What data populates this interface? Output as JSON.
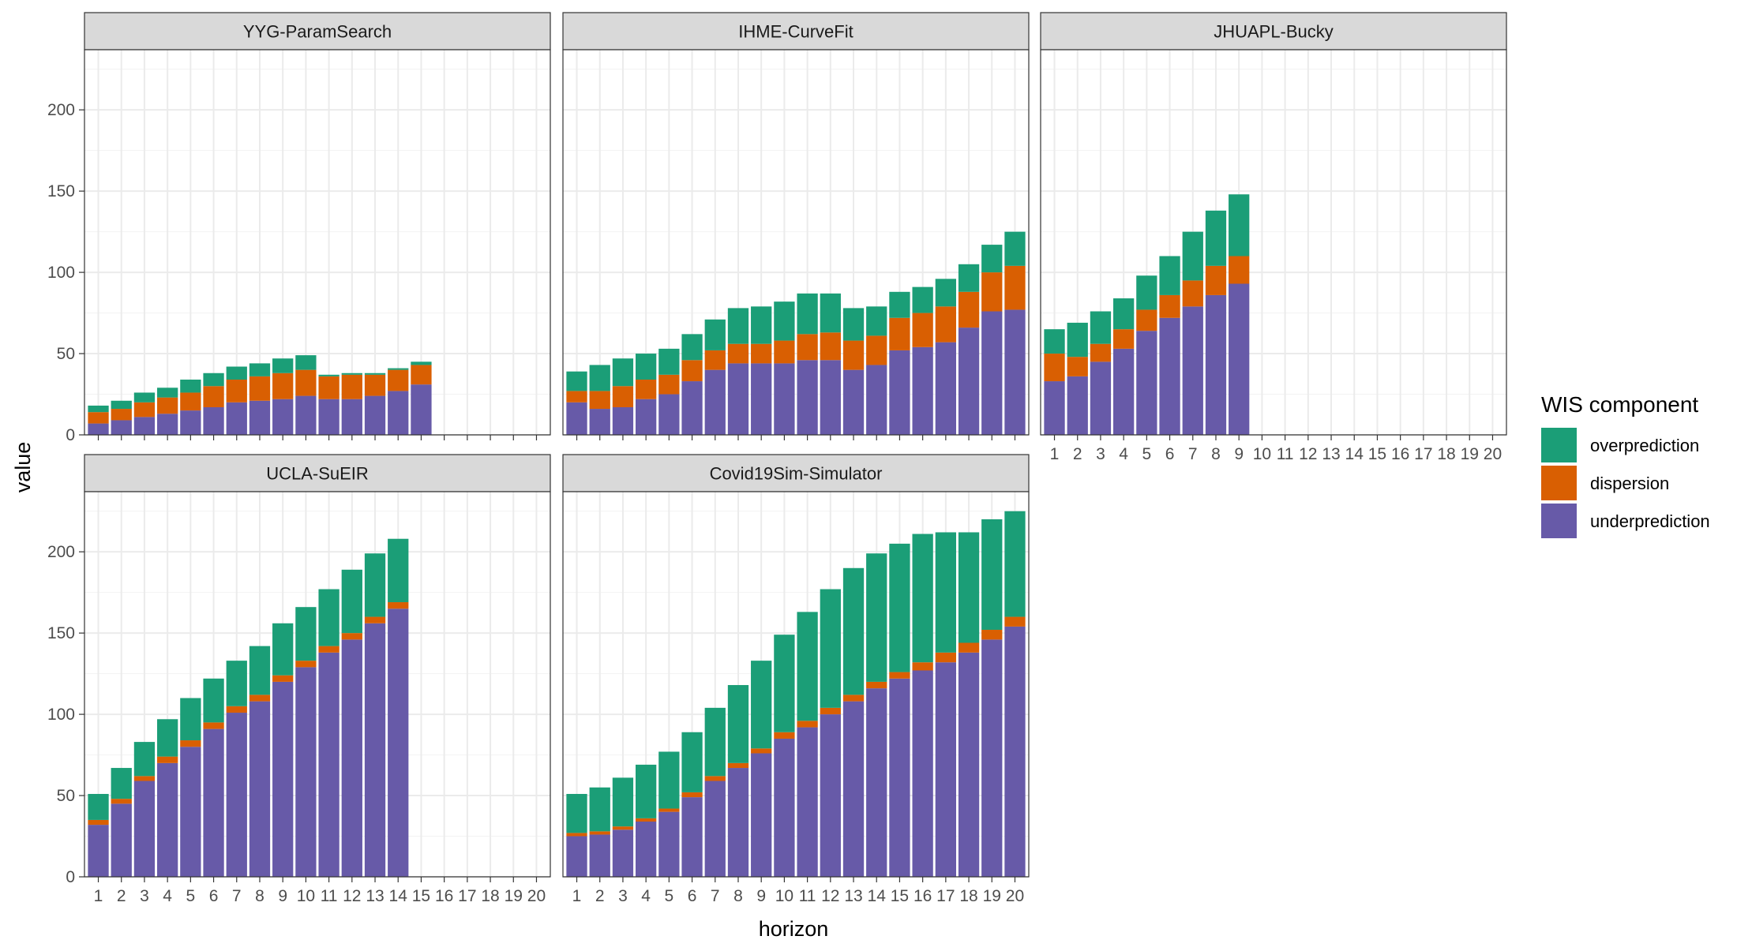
{
  "chart_data": {
    "type": "bar",
    "stacked": true,
    "faceted": true,
    "xlabel": "horizon",
    "ylabel": "value",
    "ylim": [
      0,
      237
    ],
    "yticks": [
      0,
      50,
      100,
      150,
      200
    ],
    "x": [
      1,
      2,
      3,
      4,
      5,
      6,
      7,
      8,
      9,
      10,
      11,
      12,
      13,
      14,
      15,
      16,
      17,
      18,
      19,
      20
    ],
    "grid": true,
    "legend": {
      "title": "WIS component",
      "position": "right",
      "items": [
        {
          "key": "overprediction",
          "label": "overprediction",
          "color": "#1b9e77"
        },
        {
          "key": "dispersion",
          "label": "dispersion",
          "color": "#d95f02"
        },
        {
          "key": "underprediction",
          "label": "underprediction",
          "color": "#675aa8"
        }
      ]
    },
    "stack_order": [
      "underprediction",
      "dispersion",
      "overprediction"
    ],
    "panels": [
      {
        "title": "YYG-ParamSearch",
        "underprediction": [
          7,
          9,
          11,
          13,
          15,
          17,
          20,
          21,
          22,
          24,
          22,
          22,
          24,
          27,
          31
        ],
        "dispersion": [
          7,
          7,
          9,
          10,
          11,
          13,
          14,
          15,
          16,
          16,
          14,
          15,
          13,
          13,
          12
        ],
        "overprediction": [
          4,
          5,
          6,
          6,
          8,
          8,
          8,
          8,
          9,
          9,
          1,
          1,
          1,
          1,
          2
        ]
      },
      {
        "title": "IHME-CurveFit",
        "underprediction": [
          20,
          16,
          17,
          22,
          25,
          33,
          40,
          44,
          44,
          44,
          46,
          46,
          40,
          43,
          52,
          54,
          57,
          66,
          76,
          77
        ],
        "dispersion": [
          7,
          11,
          13,
          12,
          12,
          13,
          12,
          12,
          12,
          14,
          16,
          17,
          18,
          18,
          20,
          21,
          22,
          22,
          24,
          27
        ],
        "overprediction": [
          12,
          16,
          17,
          16,
          16,
          16,
          19,
          22,
          23,
          24,
          25,
          24,
          20,
          18,
          16,
          16,
          17,
          17,
          17,
          21
        ]
      },
      {
        "title": "JHUAPL-Bucky",
        "underprediction": [
          33,
          36,
          45,
          53,
          64,
          72,
          79,
          86,
          93
        ],
        "dispersion": [
          17,
          12,
          11,
          12,
          13,
          14,
          16,
          18,
          17
        ],
        "overprediction": [
          15,
          21,
          20,
          19,
          21,
          24,
          30,
          34,
          38
        ]
      },
      {
        "title": "UCLA-SuEIR",
        "underprediction": [
          32,
          45,
          59,
          70,
          80,
          91,
          101,
          108,
          120,
          129,
          138,
          146,
          156,
          165
        ],
        "dispersion": [
          3,
          3,
          3,
          4,
          4,
          4,
          4,
          4,
          4,
          4,
          4,
          4,
          4,
          4
        ],
        "overprediction": [
          16,
          19,
          21,
          23,
          26,
          27,
          28,
          30,
          32,
          33,
          35,
          39,
          39,
          39
        ]
      },
      {
        "title": "Covid19Sim-Simulator",
        "underprediction": [
          25,
          26,
          29,
          34,
          40,
          49,
          59,
          67,
          76,
          85,
          92,
          100,
          108,
          116,
          122,
          127,
          132,
          138,
          146,
          154
        ],
        "dispersion": [
          2,
          2,
          2,
          2,
          2,
          3,
          3,
          3,
          3,
          4,
          4,
          4,
          4,
          4,
          4,
          5,
          6,
          6,
          6,
          6
        ],
        "overprediction": [
          24,
          27,
          30,
          33,
          35,
          37,
          42,
          48,
          54,
          60,
          67,
          73,
          78,
          79,
          79,
          79,
          74,
          68,
          68,
          65
        ]
      }
    ]
  }
}
